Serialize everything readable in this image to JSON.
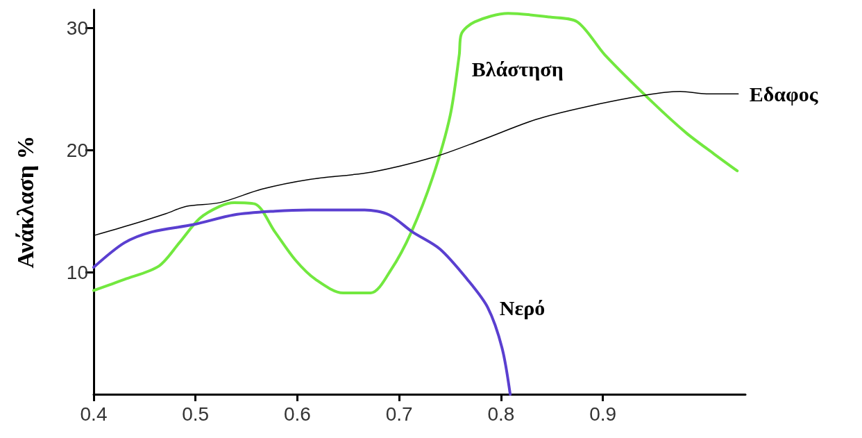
{
  "chart_data": {
    "type": "line",
    "ylabel": "Ανάκλαση %",
    "xlim": [
      0.4,
      1.04
    ],
    "ylim": [
      0,
      31.5
    ],
    "xticks": [
      0.4,
      0.5,
      0.6,
      0.7,
      0.8,
      0.9
    ],
    "yticks": [
      10,
      20,
      30
    ],
    "grid": false,
    "legend": false,
    "marker": "none",
    "line_style": "solid",
    "series": [
      {
        "name": "Βλάστηση",
        "color": "#72e83f",
        "x": [
          0.4,
          0.43,
          0.464,
          0.484,
          0.504,
          0.524,
          0.538,
          0.558,
          0.578,
          0.598,
          0.618,
          0.645,
          0.672,
          0.692,
          0.712,
          0.733,
          0.75,
          0.759,
          0.761,
          0.774,
          0.807,
          0.848,
          0.875,
          0.902,
          0.949,
          0.982,
          1.009,
          1.032
        ],
        "values": [
          8.5,
          9.4,
          10.5,
          12.4,
          14.4,
          15.4,
          15.7,
          15.6,
          13.3,
          11.0,
          9.4,
          8.3,
          8.3,
          10.2,
          13.3,
          17.8,
          22.8,
          27.8,
          29.5,
          30.5,
          31.2,
          30.9,
          30.5,
          27.8,
          23.9,
          21.4,
          19.7,
          18.3
        ]
      },
      {
        "name": "Εδαφος",
        "color": "#000000",
        "x": [
          0.4,
          0.437,
          0.471,
          0.491,
          0.524,
          0.565,
          0.612,
          0.673,
          0.733,
          0.78,
          0.834,
          0.881,
          0.942,
          0.976,
          1.003,
          1.033
        ],
        "values": [
          13.0,
          13.9,
          14.8,
          15.4,
          15.7,
          16.8,
          17.6,
          18.2,
          19.4,
          20.8,
          22.5,
          23.5,
          24.5,
          24.8,
          24.6,
          24.6
        ]
      },
      {
        "name": "Νερό",
        "color": "#5a3fd0",
        "x": [
          0.4,
          0.43,
          0.457,
          0.498,
          0.538,
          0.578,
          0.612,
          0.666,
          0.69,
          0.713,
          0.74,
          0.767,
          0.787,
          0.801,
          0.809
        ],
        "values": [
          10.4,
          12.4,
          13.3,
          13.9,
          14.7,
          15.0,
          15.1,
          15.1,
          14.7,
          13.3,
          11.9,
          9.4,
          7.1,
          3.8,
          0
        ]
      }
    ]
  }
}
